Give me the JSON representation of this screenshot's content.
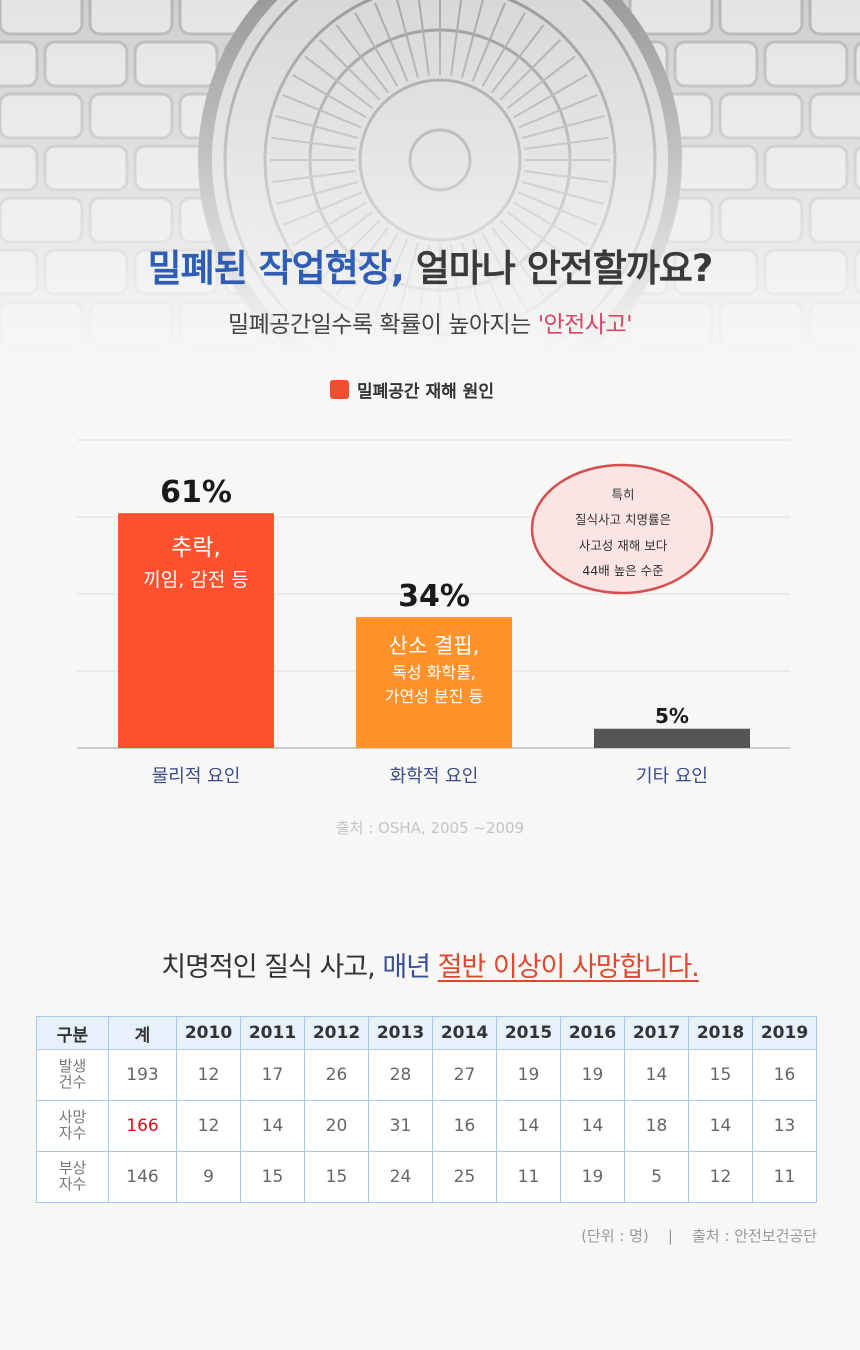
{
  "title": {
    "blue": "밀폐된 작업현장,",
    "dark": "얼마나 안전할까요?"
  },
  "subtitle": {
    "main": "밀폐공간일수록 확률이 높아지는",
    "highlight": "'안전사고'"
  },
  "legend": {
    "label": "밀폐공간 재해 원인",
    "color": "#f04e2e"
  },
  "chart_data": {
    "type": "bar",
    "categories": [
      "물리적 요인",
      "화학적 요인",
      "기타 요인"
    ],
    "values": [
      61,
      34,
      5
    ],
    "value_labels": [
      "61%",
      "34%",
      "5%"
    ],
    "bar_colors": [
      "#ff512e",
      "#ff922b",
      "#555555"
    ],
    "series": [
      {
        "name": "밀폐공간 재해 원인",
        "values": [
          61,
          34,
          5
        ]
      }
    ],
    "ylim": [
      0,
      100
    ],
    "grid": true,
    "legend_position": "top-center",
    "bar_notes": [
      [
        "추락,",
        "끼임, 감전 등"
      ],
      [
        "산소 결핍,",
        "독성 화학물,",
        "가연성 분진 등"
      ],
      []
    ]
  },
  "bubble": {
    "lines": [
      "특히",
      "질식사고 치명률은",
      "사고성 재해 보다",
      "44배 높은 수준"
    ]
  },
  "source1": "출처 : OSHA, 2005 ~2009",
  "headline2": {
    "part1": "치명적인 질식 사고,",
    "part2": "매년",
    "highlight": "절반 이상이 사망합니다."
  },
  "table": {
    "headers": [
      "구분",
      "계",
      "2010",
      "2011",
      "2012",
      "2013",
      "2014",
      "2015",
      "2016",
      "2017",
      "2018",
      "2019"
    ],
    "rows": [
      {
        "label": [
          "발생",
          "건수"
        ],
        "values": [
          "193",
          "12",
          "17",
          "26",
          "28",
          "27",
          "19",
          "19",
          "14",
          "15",
          "16"
        ]
      },
      {
        "label": [
          "사망",
          "자수"
        ],
        "values": [
          "166",
          "12",
          "14",
          "20",
          "31",
          "16",
          "14",
          "14",
          "18",
          "14",
          "13"
        ]
      },
      {
        "label": [
          "부상",
          "자수"
        ],
        "values": [
          "146",
          "9",
          "15",
          "15",
          "24",
          "25",
          "11",
          "19",
          "5",
          "12",
          "11"
        ]
      }
    ]
  },
  "footer": {
    "unit": "(단위 : 명)",
    "separator": "|",
    "source": "출처 : 안전보건공단"
  }
}
